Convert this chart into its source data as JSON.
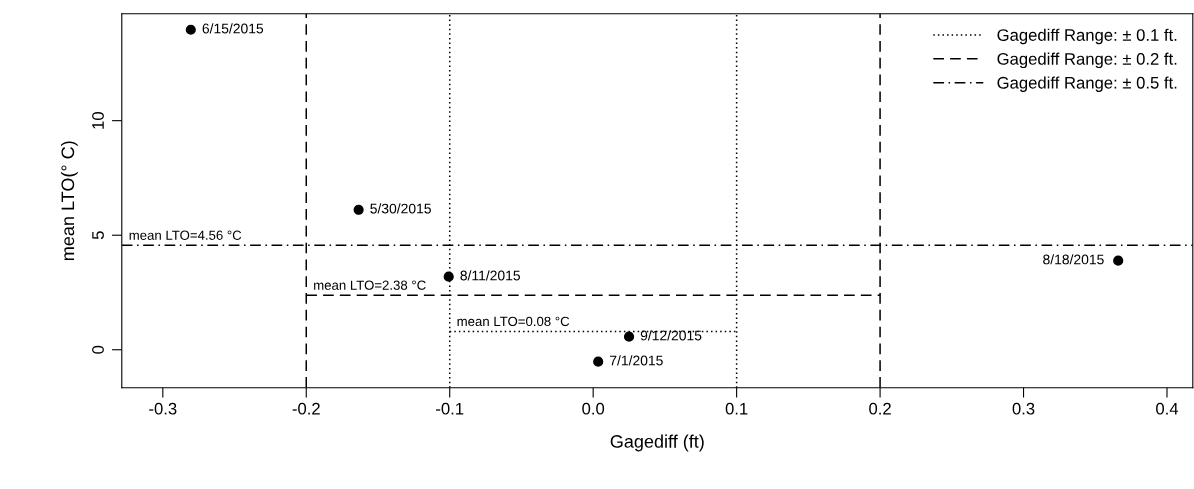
{
  "chart_data": {
    "type": "scatter",
    "xlabel": "Gagediff (ft)",
    "ylabel": "mean LTO(° C)",
    "xlim": [
      -0.3286,
      0.418
    ],
    "ylim": [
      -1.66,
      14.67
    ],
    "xticks": [
      {
        "value": -0.3,
        "label": "-0.3"
      },
      {
        "value": -0.2,
        "label": "-0.2"
      },
      {
        "value": -0.1,
        "label": "-0.1"
      },
      {
        "value": 0.0,
        "label": "0.0"
      },
      {
        "value": 0.1,
        "label": "0.1"
      },
      {
        "value": 0.2,
        "label": "0.2"
      },
      {
        "value": 0.3,
        "label": "0.3"
      },
      {
        "value": 0.4,
        "label": "0.4"
      }
    ],
    "yticks": [
      0,
      5,
      10
    ],
    "grid": false,
    "legend": "top right",
    "series": [
      {
        "color": "#000000",
        "marker": "circle",
        "x": [
          -0.2805,
          -0.1635,
          -0.1007,
          0.025,
          0.0035,
          0.366
        ],
        "values": [
          13.97,
          6.11,
          3.19,
          0.57,
          -0.52,
          3.89
        ]
      },
      {
        "type": "line",
        "name": "Gagediff Range: ± 0.1 ft.",
        "color": "#000000",
        "line_style": "dotted",
        "x": [
          -0.1,
          0.1
        ],
        "values": [
          0.8,
          0.8
        ]
      },
      {
        "type": "line",
        "name": "Gagediff Range: ± 0.2 ft.",
        "color": "#000000",
        "line_style": "dashed",
        "x": [
          -0.2,
          0.2
        ],
        "values": [
          2.38,
          2.38
        ]
      },
      {
        "type": "line",
        "name": "Gagediff Range: ± 0.5 ft.",
        "color": "#000000",
        "line_style": "dashdot",
        "x": [
          -0.3286,
          0.418
        ],
        "values": [
          4.56,
          4.56
        ]
      }
    ],
    "ref_lines": [
      {
        "axis": "x",
        "value": -0.1,
        "line_style": "dotted",
        "color": "#000000"
      },
      {
        "axis": "x",
        "value": 0.1,
        "line_style": "dotted",
        "color": "#000000"
      },
      {
        "axis": "x",
        "value": -0.2,
        "line_style": "dashed",
        "color": "#000000"
      },
      {
        "axis": "x",
        "value": 0.2,
        "line_style": "dashed",
        "color": "#000000"
      }
    ],
    "annotations": [
      {
        "text": "6/15/2015",
        "x": -0.2805,
        "y": 13.97
      },
      {
        "text": "5/30/2015",
        "x": -0.1635,
        "y": 6.11
      },
      {
        "text": "8/11/2015",
        "x": -0.1007,
        "y": 3.19
      },
      {
        "text": "9/12/2015",
        "x": 0.025,
        "y": 0.57
      },
      {
        "text": "7/1/2015",
        "x": 0.0035,
        "y": -0.52
      },
      {
        "text": "8/18/2015",
        "x": 0.366,
        "y": 3.89
      },
      {
        "text": "mean LTO=4.56 °C",
        "x": -0.3286,
        "y": 4.56
      },
      {
        "text": "mean LTO=2.38 °C",
        "x": -0.2,
        "y": 2.38
      },
      {
        "text": "mean LTO=0.08 °C",
        "x": -0.1,
        "y": 0.8
      }
    ]
  }
}
